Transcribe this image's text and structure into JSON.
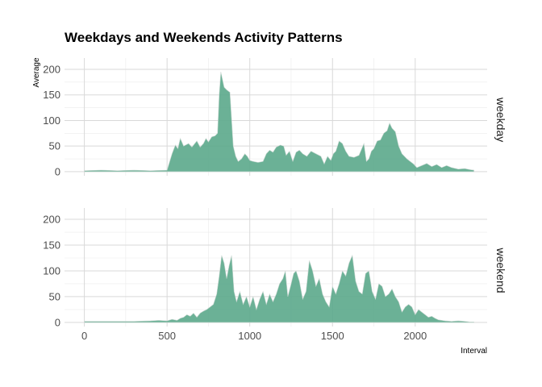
{
  "chart_data": {
    "type": "area",
    "title": "Weekdays and Weekends Activity Patterns",
    "xlabel": "Interval",
    "ylabel": "Average",
    "xlim": [
      -120,
      2435
    ],
    "ylim": [
      -8,
      222
    ],
    "x_ticks": [
      0,
      500,
      1000,
      1500,
      2000
    ],
    "y_ticks": [
      0,
      50,
      100,
      150,
      200
    ],
    "grid": true,
    "fill_color": "#5ba88b",
    "panels": [
      {
        "name": "weekday",
        "points": [
          [
            0,
            2
          ],
          [
            100,
            3
          ],
          [
            200,
            2
          ],
          [
            300,
            3
          ],
          [
            400,
            2
          ],
          [
            500,
            3
          ],
          [
            530,
            35
          ],
          [
            550,
            52
          ],
          [
            565,
            45
          ],
          [
            580,
            65
          ],
          [
            600,
            50
          ],
          [
            630,
            55
          ],
          [
            650,
            48
          ],
          [
            680,
            60
          ],
          [
            700,
            48
          ],
          [
            720,
            55
          ],
          [
            735,
            65
          ],
          [
            750,
            58
          ],
          [
            770,
            68
          ],
          [
            790,
            70
          ],
          [
            805,
            75
          ],
          [
            815,
            150
          ],
          [
            825,
            195
          ],
          [
            835,
            180
          ],
          [
            845,
            165
          ],
          [
            860,
            160
          ],
          [
            880,
            155
          ],
          [
            900,
            50
          ],
          [
            915,
            30
          ],
          [
            930,
            20
          ],
          [
            950,
            25
          ],
          [
            970,
            35
          ],
          [
            985,
            30
          ],
          [
            1000,
            22
          ],
          [
            1020,
            20
          ],
          [
            1050,
            18
          ],
          [
            1080,
            20
          ],
          [
            1100,
            35
          ],
          [
            1120,
            42
          ],
          [
            1140,
            38
          ],
          [
            1160,
            48
          ],
          [
            1185,
            52
          ],
          [
            1205,
            50
          ],
          [
            1220,
            32
          ],
          [
            1240,
            40
          ],
          [
            1260,
            20
          ],
          [
            1280,
            38
          ],
          [
            1300,
            42
          ],
          [
            1320,
            35
          ],
          [
            1345,
            30
          ],
          [
            1370,
            40
          ],
          [
            1400,
            35
          ],
          [
            1430,
            30
          ],
          [
            1450,
            15
          ],
          [
            1470,
            30
          ],
          [
            1490,
            22
          ],
          [
            1505,
            35
          ],
          [
            1520,
            40
          ],
          [
            1540,
            60
          ],
          [
            1560,
            55
          ],
          [
            1580,
            40
          ],
          [
            1600,
            30
          ],
          [
            1630,
            28
          ],
          [
            1660,
            32
          ],
          [
            1690,
            55
          ],
          [
            1705,
            20
          ],
          [
            1720,
            25
          ],
          [
            1735,
            40
          ],
          [
            1750,
            45
          ],
          [
            1770,
            60
          ],
          [
            1790,
            62
          ],
          [
            1810,
            75
          ],
          [
            1830,
            80
          ],
          [
            1845,
            95
          ],
          [
            1860,
            85
          ],
          [
            1880,
            78
          ],
          [
            1900,
            50
          ],
          [
            1920,
            35
          ],
          [
            1950,
            25
          ],
          [
            1970,
            20
          ],
          [
            1990,
            15
          ],
          [
            2010,
            8
          ],
          [
            2040,
            12
          ],
          [
            2070,
            16
          ],
          [
            2100,
            10
          ],
          [
            2130,
            14
          ],
          [
            2160,
            8
          ],
          [
            2190,
            12
          ],
          [
            2220,
            8
          ],
          [
            2260,
            5
          ],
          [
            2300,
            6
          ],
          [
            2330,
            4
          ],
          [
            2355,
            3
          ]
        ]
      },
      {
        "name": "weekend",
        "points": [
          [
            0,
            2
          ],
          [
            100,
            2
          ],
          [
            200,
            2
          ],
          [
            300,
            2
          ],
          [
            400,
            3
          ],
          [
            450,
            4
          ],
          [
            500,
            3
          ],
          [
            530,
            6
          ],
          [
            560,
            4
          ],
          [
            580,
            8
          ],
          [
            600,
            10
          ],
          [
            620,
            15
          ],
          [
            640,
            12
          ],
          [
            660,
            18
          ],
          [
            680,
            10
          ],
          [
            700,
            18
          ],
          [
            720,
            22
          ],
          [
            740,
            25
          ],
          [
            760,
            30
          ],
          [
            780,
            35
          ],
          [
            800,
            55
          ],
          [
            815,
            90
          ],
          [
            830,
            130
          ],
          [
            845,
            115
          ],
          [
            860,
            85
          ],
          [
            875,
            110
          ],
          [
            890,
            130
          ],
          [
            905,
            60
          ],
          [
            920,
            40
          ],
          [
            940,
            60
          ],
          [
            960,
            35
          ],
          [
            980,
            50
          ],
          [
            1000,
            30
          ],
          [
            1020,
            50
          ],
          [
            1040,
            25
          ],
          [
            1060,
            45
          ],
          [
            1080,
            60
          ],
          [
            1100,
            35
          ],
          [
            1120,
            55
          ],
          [
            1140,
            40
          ],
          [
            1160,
            55
          ],
          [
            1180,
            75
          ],
          [
            1200,
            85
          ],
          [
            1215,
            100
          ],
          [
            1230,
            50
          ],
          [
            1250,
            75
          ],
          [
            1265,
            95
          ],
          [
            1280,
            100
          ],
          [
            1300,
            80
          ],
          [
            1320,
            45
          ],
          [
            1340,
            60
          ],
          [
            1360,
            120
          ],
          [
            1380,
            100
          ],
          [
            1400,
            70
          ],
          [
            1420,
            85
          ],
          [
            1440,
            55
          ],
          [
            1460,
            40
          ],
          [
            1480,
            30
          ],
          [
            1500,
            70
          ],
          [
            1520,
            55
          ],
          [
            1540,
            75
          ],
          [
            1560,
            100
          ],
          [
            1580,
            90
          ],
          [
            1600,
            115
          ],
          [
            1620,
            130
          ],
          [
            1640,
            80
          ],
          [
            1660,
            60
          ],
          [
            1680,
            55
          ],
          [
            1700,
            95
          ],
          [
            1720,
            100
          ],
          [
            1740,
            60
          ],
          [
            1760,
            45
          ],
          [
            1780,
            75
          ],
          [
            1800,
            70
          ],
          [
            1820,
            50
          ],
          [
            1840,
            55
          ],
          [
            1860,
            65
          ],
          [
            1880,
            50
          ],
          [
            1900,
            40
          ],
          [
            1920,
            20
          ],
          [
            1940,
            30
          ],
          [
            1960,
            35
          ],
          [
            1980,
            30
          ],
          [
            2000,
            15
          ],
          [
            2020,
            25
          ],
          [
            2040,
            20
          ],
          [
            2060,
            15
          ],
          [
            2080,
            10
          ],
          [
            2100,
            12
          ],
          [
            2120,
            8
          ],
          [
            2140,
            5
          ],
          [
            2180,
            3
          ],
          [
            2220,
            2
          ],
          [
            2260,
            3
          ],
          [
            2300,
            2
          ],
          [
            2330,
            1
          ],
          [
            2355,
            1
          ]
        ]
      }
    ]
  }
}
